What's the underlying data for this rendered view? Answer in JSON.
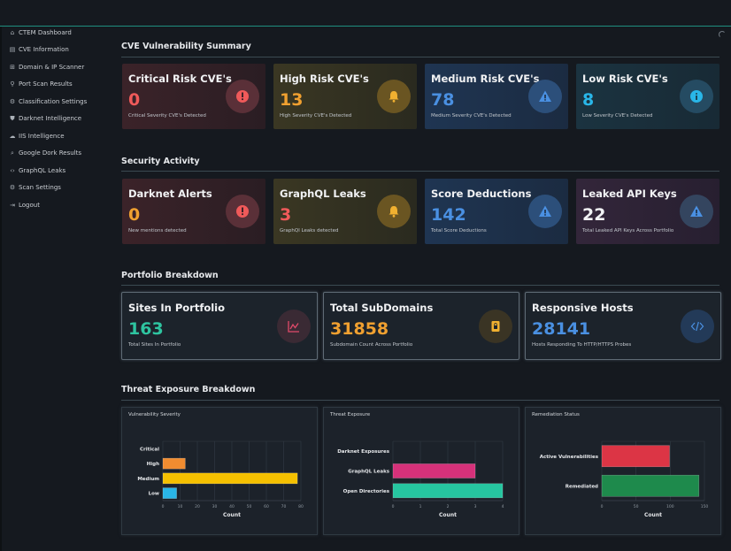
{
  "sidebar": {
    "items": [
      {
        "label": "CTEM Dashboard",
        "icon": "home-icon"
      },
      {
        "label": "CVE Information",
        "icon": "document-icon"
      },
      {
        "label": "Domain & IP Scanner",
        "icon": "network-icon"
      },
      {
        "label": "Port Scan Results",
        "icon": "plug-icon"
      },
      {
        "label": "Classification Settings",
        "icon": "gear-icon"
      },
      {
        "label": "Darknet Intelligence",
        "icon": "shield-icon"
      },
      {
        "label": "IIS Intelligence",
        "icon": "cloud-icon"
      },
      {
        "label": "Google Dork Results",
        "icon": "search-icon"
      },
      {
        "label": "GraphQL Leaks",
        "icon": "code-icon"
      },
      {
        "label": "Scan Settings",
        "icon": "gear-icon"
      },
      {
        "label": "Logout",
        "icon": "logout-icon"
      }
    ]
  },
  "sections": {
    "cve": "CVE Vulnerability Summary",
    "activity": "Security Activity",
    "portfolio": "Portfolio Breakdown",
    "threat": "Threat Exposure Breakdown"
  },
  "cve_cards": [
    {
      "title": "Critical Risk CVE's",
      "value": "0",
      "sub": "Critical Severity CVE's Detected",
      "color": "#f05a5a",
      "icon": "exclamation-icon"
    },
    {
      "title": "High Risk CVE's",
      "value": "13",
      "sub": "High Severity CVE's Detected",
      "color": "#f0a030",
      "icon": "bell-icon"
    },
    {
      "title": "Medium Risk CVE's",
      "value": "78",
      "sub": "Medium Severity CVE's Detected",
      "color": "#4a90e2",
      "icon": "warning-icon"
    },
    {
      "title": "Low Risk CVE's",
      "value": "8",
      "sub": "Low Severity CVE's Detected",
      "color": "#29b6e8",
      "icon": "info-icon"
    }
  ],
  "activity_cards": [
    {
      "title": "Darknet Alerts",
      "value": "0",
      "sub": "New mentions detected",
      "color": "#f0a030",
      "icon": "exclamation-icon"
    },
    {
      "title": "GraphQL Leaks",
      "value": "3",
      "sub": "GraphQl Leaks detected",
      "color": "#f05a5a",
      "icon": "bell-icon"
    },
    {
      "title": "Score Deductions",
      "value": "142",
      "sub": "Total Score Deductions",
      "color": "#4a90e2",
      "icon": "warning-icon"
    },
    {
      "title": "Leaked API Keys",
      "value": "22",
      "sub": "Total Leaked API Keys Across Portfolio",
      "color": "#f1f2f4",
      "icon": "warning-icon"
    }
  ],
  "portfolio_cards": [
    {
      "title": "Sites In Portfolio",
      "value": "163",
      "sub": "Total Sites In Portfolio",
      "color": "#2ec4a0",
      "icon": "chart-icon"
    },
    {
      "title": "Total SubDomains",
      "value": "31858",
      "sub": "Subdomain Count Across Portfolio",
      "color": "#f0a030",
      "icon": "lock-icon"
    },
    {
      "title": "Responsive Hosts",
      "value": "28141",
      "sub": "Hosts Responding To HTTP/HTTPS Probes",
      "color": "#4a90e2",
      "icon": "code-icon"
    }
  ],
  "chart_data": [
    {
      "type": "bar",
      "orientation": "horizontal",
      "title": "Vulnerability Severity",
      "categories": [
        "Critical",
        "High",
        "Medium",
        "Low"
      ],
      "values": [
        0,
        13,
        78,
        8
      ],
      "colors": [
        "#e04050",
        "#f08c30",
        "#f5c000",
        "#29b6e8"
      ],
      "xlabel": "Count",
      "xlim": [
        0,
        80
      ],
      "xticks": [
        "0",
        "10",
        "20",
        "30",
        "40",
        "50",
        "60",
        "70",
        "80"
      ]
    },
    {
      "type": "bar",
      "orientation": "horizontal",
      "title": "Threat Exposure",
      "categories": [
        "Darknet Exposures",
        "GraphQL Leaks",
        "Open Directories"
      ],
      "values": [
        0,
        3,
        4
      ],
      "colors": [
        "#9b59b6",
        "#d6317a",
        "#26c6a0"
      ],
      "xlabel": "Count",
      "xlim": [
        0,
        4
      ],
      "xticks": [
        "0",
        "1",
        "2",
        "3",
        "4"
      ]
    },
    {
      "type": "bar",
      "orientation": "horizontal",
      "title": "Remediation Status",
      "categories": [
        "Active Vulnerabilities",
        "Remediated"
      ],
      "values": [
        99,
        142
      ],
      "colors": [
        "#dc3545",
        "#1e8a4c"
      ],
      "xlabel": "Count",
      "xlim": [
        0,
        150
      ],
      "xticks": [
        "0",
        "50",
        "100",
        "150"
      ]
    }
  ]
}
